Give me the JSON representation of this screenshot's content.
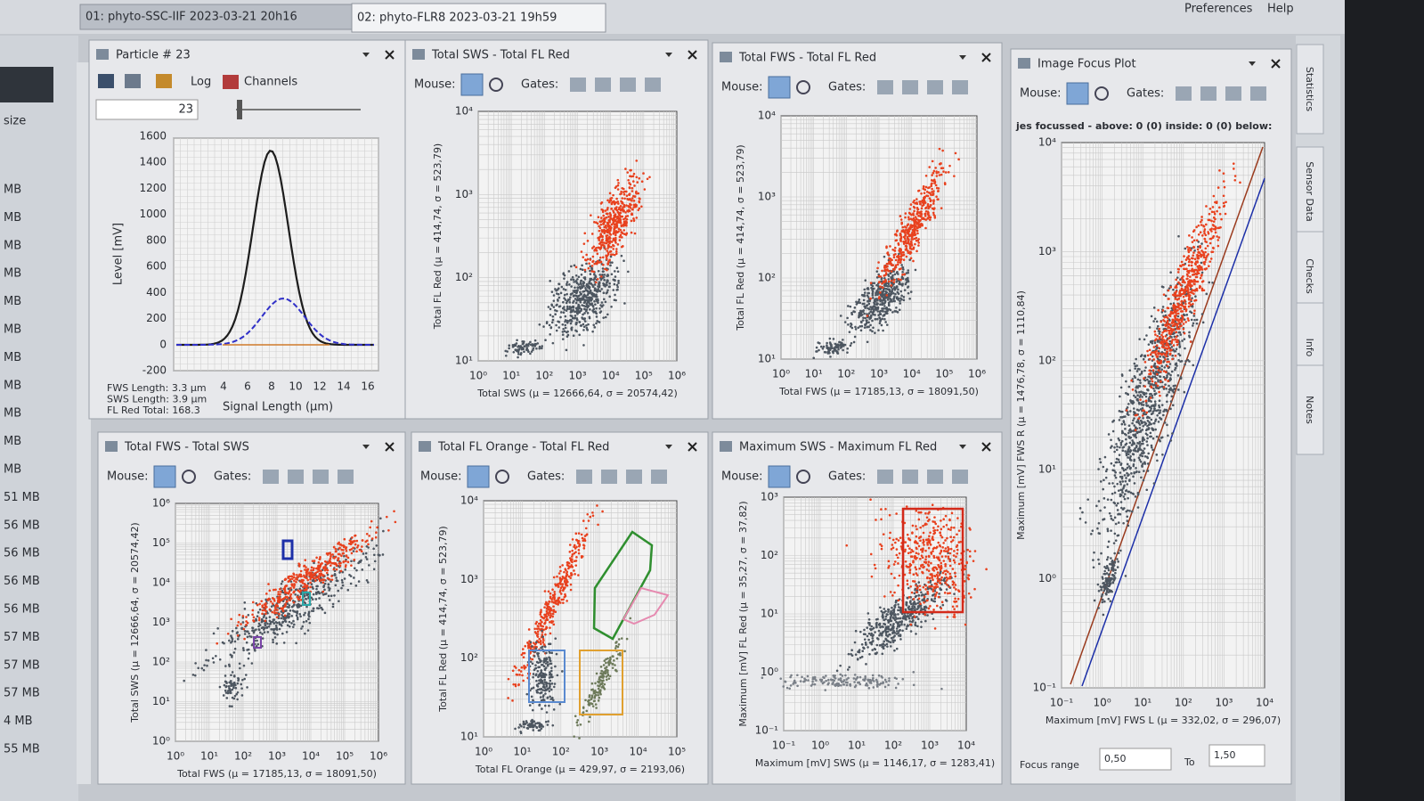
{
  "tabs": [
    "01: phyto-SSC-IIF 2023-03-21 20h16",
    "02: phyto-FLR8 2023-03-21 19h59"
  ],
  "menu": [
    "Preferences",
    "Help"
  ],
  "sidebar": {
    "header": "size",
    "items": [
      "MB",
      "MB",
      "MB",
      "MB",
      "MB",
      "MB",
      "MB",
      "MB",
      "MB",
      "MB",
      "MB",
      "51 MB",
      "56 MB",
      "56 MB",
      "56 MB",
      "56 MB",
      "57 MB",
      "57 MB",
      "57 MB",
      "4 MB",
      "55 MB"
    ]
  },
  "right_tabs": [
    "Statistics",
    "Sensor Data",
    "Checks",
    "Info",
    "Notes"
  ],
  "particle": {
    "title": "Particle # 23",
    "log": "Log",
    "channels": "Channels",
    "index": "23",
    "yticks": [
      1600,
      1400,
      1200,
      1000,
      800,
      600,
      400,
      200,
      0,
      -200
    ],
    "xticks": [
      4,
      6,
      8,
      10,
      12,
      14,
      16
    ],
    "ylabel": "Level [mV]",
    "xlabel": "Signal Length (µm)",
    "info": [
      "FWS Length: 3.3 µm",
      "SWS Length: 3.9 µm",
      "FL Red Total: 168.3"
    ]
  },
  "plots": [
    {
      "title": "Total SWS - Total FL Red",
      "mouse": "Mouse:",
      "gates": "Gates:",
      "ylabel": "Total FL Red (µ = 414,74, σ = 523,79)",
      "xlabel": "Total SWS (µ = 12666,64, σ = 20574,42)",
      "yticks": [
        "10¹",
        "10²",
        "10³",
        "10⁴"
      ],
      "xticks": [
        "10⁰",
        "10¹",
        "10²",
        "10³",
        "10⁴",
        "10⁵",
        "10⁶"
      ]
    },
    {
      "title": "Total FWS - Total FL Red",
      "mouse": "Mouse:",
      "gates": "Gates:",
      "ylabel": "Total FL Red (µ = 414,74, σ = 523,79)",
      "xlabel": "Total FWS (µ = 17185,13, σ = 18091,50)",
      "yticks": [
        "10¹",
        "10²",
        "10³",
        "10⁴"
      ],
      "xticks": [
        "10⁰",
        "10¹",
        "10²",
        "10³",
        "10⁴",
        "10⁵",
        "10⁶"
      ]
    },
    {
      "title": "Image Focus Plot",
      "mouse": "Mouse:",
      "gates": "Gates:",
      "ylabel": "Maximum [mV] FWS R (µ = 1476,78, σ = 1110,84)",
      "xlabel": "Maximum [mV] FWS L (µ = 332,02, σ = 296,07)",
      "yticks": [
        "10⁻¹",
        "10⁰",
        "10¹",
        "10²",
        "10³",
        "10⁴"
      ],
      "xticks": [
        "10⁻¹",
        "10⁰",
        "10¹",
        "10²",
        "10³",
        "10⁴"
      ],
      "status": "jes focussed - above: 0 (0) inside: 0 (0) below:",
      "range_label": "Focus range",
      "from": "0,50",
      "to_label": "To",
      "to": "1,50"
    },
    {
      "title": "Total FWS - Total SWS",
      "mouse": "Mouse:",
      "gates": "Gates:",
      "ylabel": "Total SWS (µ = 12666,64, σ = 20574,42)",
      "xlabel": "Total FWS (µ = 17185,13, σ = 18091,50)",
      "yticks": [
        "10⁰",
        "10¹",
        "10²",
        "10³",
        "10⁴",
        "10⁵",
        "10⁶"
      ],
      "xticks": [
        "10⁰",
        "10¹",
        "10²",
        "10³",
        "10⁴",
        "10⁵",
        "10⁶"
      ]
    },
    {
      "title": "Total FL Orange - Total FL Red",
      "mouse": "Mouse:",
      "gates": "Gates:",
      "ylabel": "Total FL Red (µ = 414,74, σ = 523,79)",
      "xlabel": "Total FL Orange (µ = 429,97, σ = 2193,06)",
      "yticks": [
        "10¹",
        "10²",
        "10³",
        "10⁴"
      ],
      "xticks": [
        "10⁰",
        "10¹",
        "10²",
        "10³",
        "10⁴",
        "10⁵"
      ]
    },
    {
      "title": "Maximum SWS - Maximum FL Red",
      "mouse": "Mouse:",
      "gates": "Gates:",
      "ylabel": "Maximum [mV] FL Red (µ = 35,27, σ = 37,82)",
      "xlabel": "Maximum [mV] SWS (µ = 1146,17, σ = 1283,41)",
      "yticks": [
        "10⁻¹",
        "10⁰",
        "10¹",
        "10²",
        "10³"
      ],
      "xticks": [
        "10⁻¹",
        "10⁰",
        "10¹",
        "10²",
        "10³",
        "10⁴"
      ]
    }
  ]
}
